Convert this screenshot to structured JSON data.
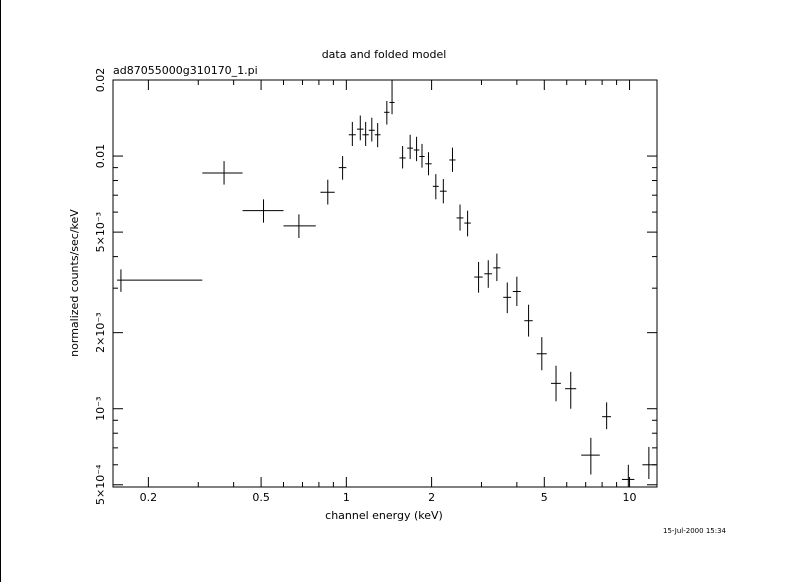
{
  "chart_data": {
    "type": "scatter",
    "title": "data and folded model",
    "subtitle": "ad87055000g310170_1.pi",
    "xlabel": "channel energy (keV)",
    "ylabel": "normalized counts/sec/keV",
    "timestamp": "15-Jul-2000 15:34",
    "xscale": "log",
    "yscale": "log",
    "xlim": [
      0.15,
      12.5
    ],
    "ylim": [
      0.00049,
      0.02
    ],
    "grid": false,
    "x_tick_labels": [
      {
        "value": 0.2,
        "label": "0.2"
      },
      {
        "value": 0.5,
        "label": "0.5"
      },
      {
        "value": 1,
        "label": "1"
      },
      {
        "value": 2,
        "label": "2"
      },
      {
        "value": 5,
        "label": "5"
      },
      {
        "value": 10,
        "label": "10"
      }
    ],
    "y_tick_labels": [
      {
        "value": 0.0005,
        "label": "5×10⁻⁴"
      },
      {
        "value": 0.001,
        "label": "10⁻³"
      },
      {
        "value": 0.002,
        "label": "2×10⁻³"
      },
      {
        "value": 0.005,
        "label": "5×10⁻³"
      },
      {
        "value": 0.01,
        "label": "0.01"
      },
      {
        "value": 0.02,
        "label": "0.02"
      }
    ],
    "points": [
      {
        "x": 0.16,
        "xlo": 0.155,
        "xhi": 0.31,
        "y": 0.00323,
        "ylo": 0.0029,
        "yhi": 0.00356
      },
      {
        "x": 0.37,
        "xlo": 0.31,
        "xhi": 0.43,
        "y": 0.00857,
        "ylo": 0.00771,
        "yhi": 0.00955
      },
      {
        "x": 0.51,
        "xlo": 0.43,
        "xhi": 0.6,
        "y": 0.00608,
        "ylo": 0.00545,
        "yhi": 0.00674
      },
      {
        "x": 0.68,
        "xlo": 0.6,
        "xhi": 0.78,
        "y": 0.00529,
        "ylo": 0.00474,
        "yhi": 0.00588
      },
      {
        "x": 0.86,
        "xlo": 0.81,
        "xhi": 0.91,
        "y": 0.00719,
        "ylo": 0.00643,
        "yhi": 0.00806
      },
      {
        "x": 0.97,
        "xlo": 0.94,
        "xhi": 1.0,
        "y": 0.009,
        "ylo": 0.00806,
        "yhi": 0.01
      },
      {
        "x": 1.05,
        "xlo": 1.02,
        "xhi": 1.08,
        "y": 0.01214,
        "ylo": 0.01096,
        "yhi": 0.01365
      },
      {
        "x": 1.12,
        "xlo": 1.09,
        "xhi": 1.15,
        "y": 0.01278,
        "ylo": 0.01154,
        "yhi": 0.01447
      },
      {
        "x": 1.17,
        "xlo": 1.14,
        "xhi": 1.2,
        "y": 0.01214,
        "ylo": 0.01096,
        "yhi": 0.01365
      },
      {
        "x": 1.23,
        "xlo": 1.2,
        "xhi": 1.26,
        "y": 0.01265,
        "ylo": 0.01142,
        "yhi": 0.01418
      },
      {
        "x": 1.29,
        "xlo": 1.26,
        "xhi": 1.32,
        "y": 0.01214,
        "ylo": 0.01084,
        "yhi": 0.01351
      },
      {
        "x": 1.39,
        "xlo": 1.36,
        "xhi": 1.42,
        "y": 0.0149,
        "ylo": 0.01333,
        "yhi": 0.01653
      },
      {
        "x": 1.45,
        "xlo": 1.42,
        "xhi": 1.48,
        "y": 0.0163,
        "ylo": 0.01464,
        "yhi": 0.02
      },
      {
        "x": 1.58,
        "xlo": 1.54,
        "xhi": 1.62,
        "y": 0.00983,
        "ylo": 0.00893,
        "yhi": 0.01096
      },
      {
        "x": 1.68,
        "xlo": 1.64,
        "xhi": 1.72,
        "y": 0.01075,
        "ylo": 0.00973,
        "yhi": 0.01214
      },
      {
        "x": 1.77,
        "xlo": 1.73,
        "xhi": 1.81,
        "y": 0.01057,
        "ylo": 0.00955,
        "yhi": 0.01192
      },
      {
        "x": 1.85,
        "xlo": 1.81,
        "xhi": 1.89,
        "y": 0.00996,
        "ylo": 0.009,
        "yhi": 0.01117
      },
      {
        "x": 1.95,
        "xlo": 1.9,
        "xhi": 2.0,
        "y": 0.00932,
        "ylo": 0.00839,
        "yhi": 0.01036
      },
      {
        "x": 2.07,
        "xlo": 2.02,
        "xhi": 2.12,
        "y": 0.00759,
        "ylo": 0.00674,
        "yhi": 0.00848
      },
      {
        "x": 2.2,
        "xlo": 2.14,
        "xhi": 2.26,
        "y": 0.00726,
        "ylo": 0.0065,
        "yhi": 0.00811
      },
      {
        "x": 2.37,
        "xlo": 2.31,
        "xhi": 2.43,
        "y": 0.00965,
        "ylo": 0.00866,
        "yhi": 0.0108
      },
      {
        "x": 2.52,
        "xlo": 2.45,
        "xhi": 2.59,
        "y": 0.00569,
        "ylo": 0.00507,
        "yhi": 0.00643
      },
      {
        "x": 2.68,
        "xlo": 2.61,
        "xhi": 2.75,
        "y": 0.00543,
        "ylo": 0.00481,
        "yhi": 0.00608
      },
      {
        "x": 2.93,
        "xlo": 2.83,
        "xhi": 3.03,
        "y": 0.00332,
        "ylo": 0.00288,
        "yhi": 0.00381
      },
      {
        "x": 3.17,
        "xlo": 3.07,
        "xhi": 3.27,
        "y": 0.00342,
        "ylo": 0.00301,
        "yhi": 0.00387
      },
      {
        "x": 3.4,
        "xlo": 3.3,
        "xhi": 3.5,
        "y": 0.00361,
        "ylo": 0.0032,
        "yhi": 0.00411
      },
      {
        "x": 3.7,
        "xlo": 3.58,
        "xhi": 3.82,
        "y": 0.00276,
        "ylo": 0.00239,
        "yhi": 0.00316
      },
      {
        "x": 4.0,
        "xlo": 3.87,
        "xhi": 4.13,
        "y": 0.00291,
        "ylo": 0.00255,
        "yhi": 0.00333
      },
      {
        "x": 4.4,
        "xlo": 4.25,
        "xhi": 4.55,
        "y": 0.00223,
        "ylo": 0.00193,
        "yhi": 0.00258
      },
      {
        "x": 4.9,
        "xlo": 4.7,
        "xhi": 5.1,
        "y": 0.00165,
        "ylo": 0.00142,
        "yhi": 0.00192
      },
      {
        "x": 5.5,
        "xlo": 5.28,
        "xhi": 5.72,
        "y": 0.00126,
        "ylo": 0.00107,
        "yhi": 0.00148
      },
      {
        "x": 6.2,
        "xlo": 5.92,
        "xhi": 6.48,
        "y": 0.0012,
        "ylo": 0.001,
        "yhi": 0.0014
      },
      {
        "x": 7.3,
        "xlo": 6.75,
        "xhi": 7.85,
        "y": 0.000655,
        "ylo": 0.000549,
        "yhi": 0.000767
      },
      {
        "x": 8.3,
        "xlo": 8.0,
        "xhi": 8.6,
        "y": 0.00093,
        "ylo": 0.00083,
        "yhi": 0.00106
      },
      {
        "x": 9.9,
        "xlo": 9.4,
        "xhi": 10.4,
        "y": 0.000525,
        "ylo": 0.00049,
        "yhi": 0.0006
      },
      {
        "x": 11.7,
        "xlo": 11.1,
        "xhi": 12.4,
        "y": 0.0006,
        "ylo": 0.000527,
        "yhi": 0.000706
      }
    ]
  }
}
